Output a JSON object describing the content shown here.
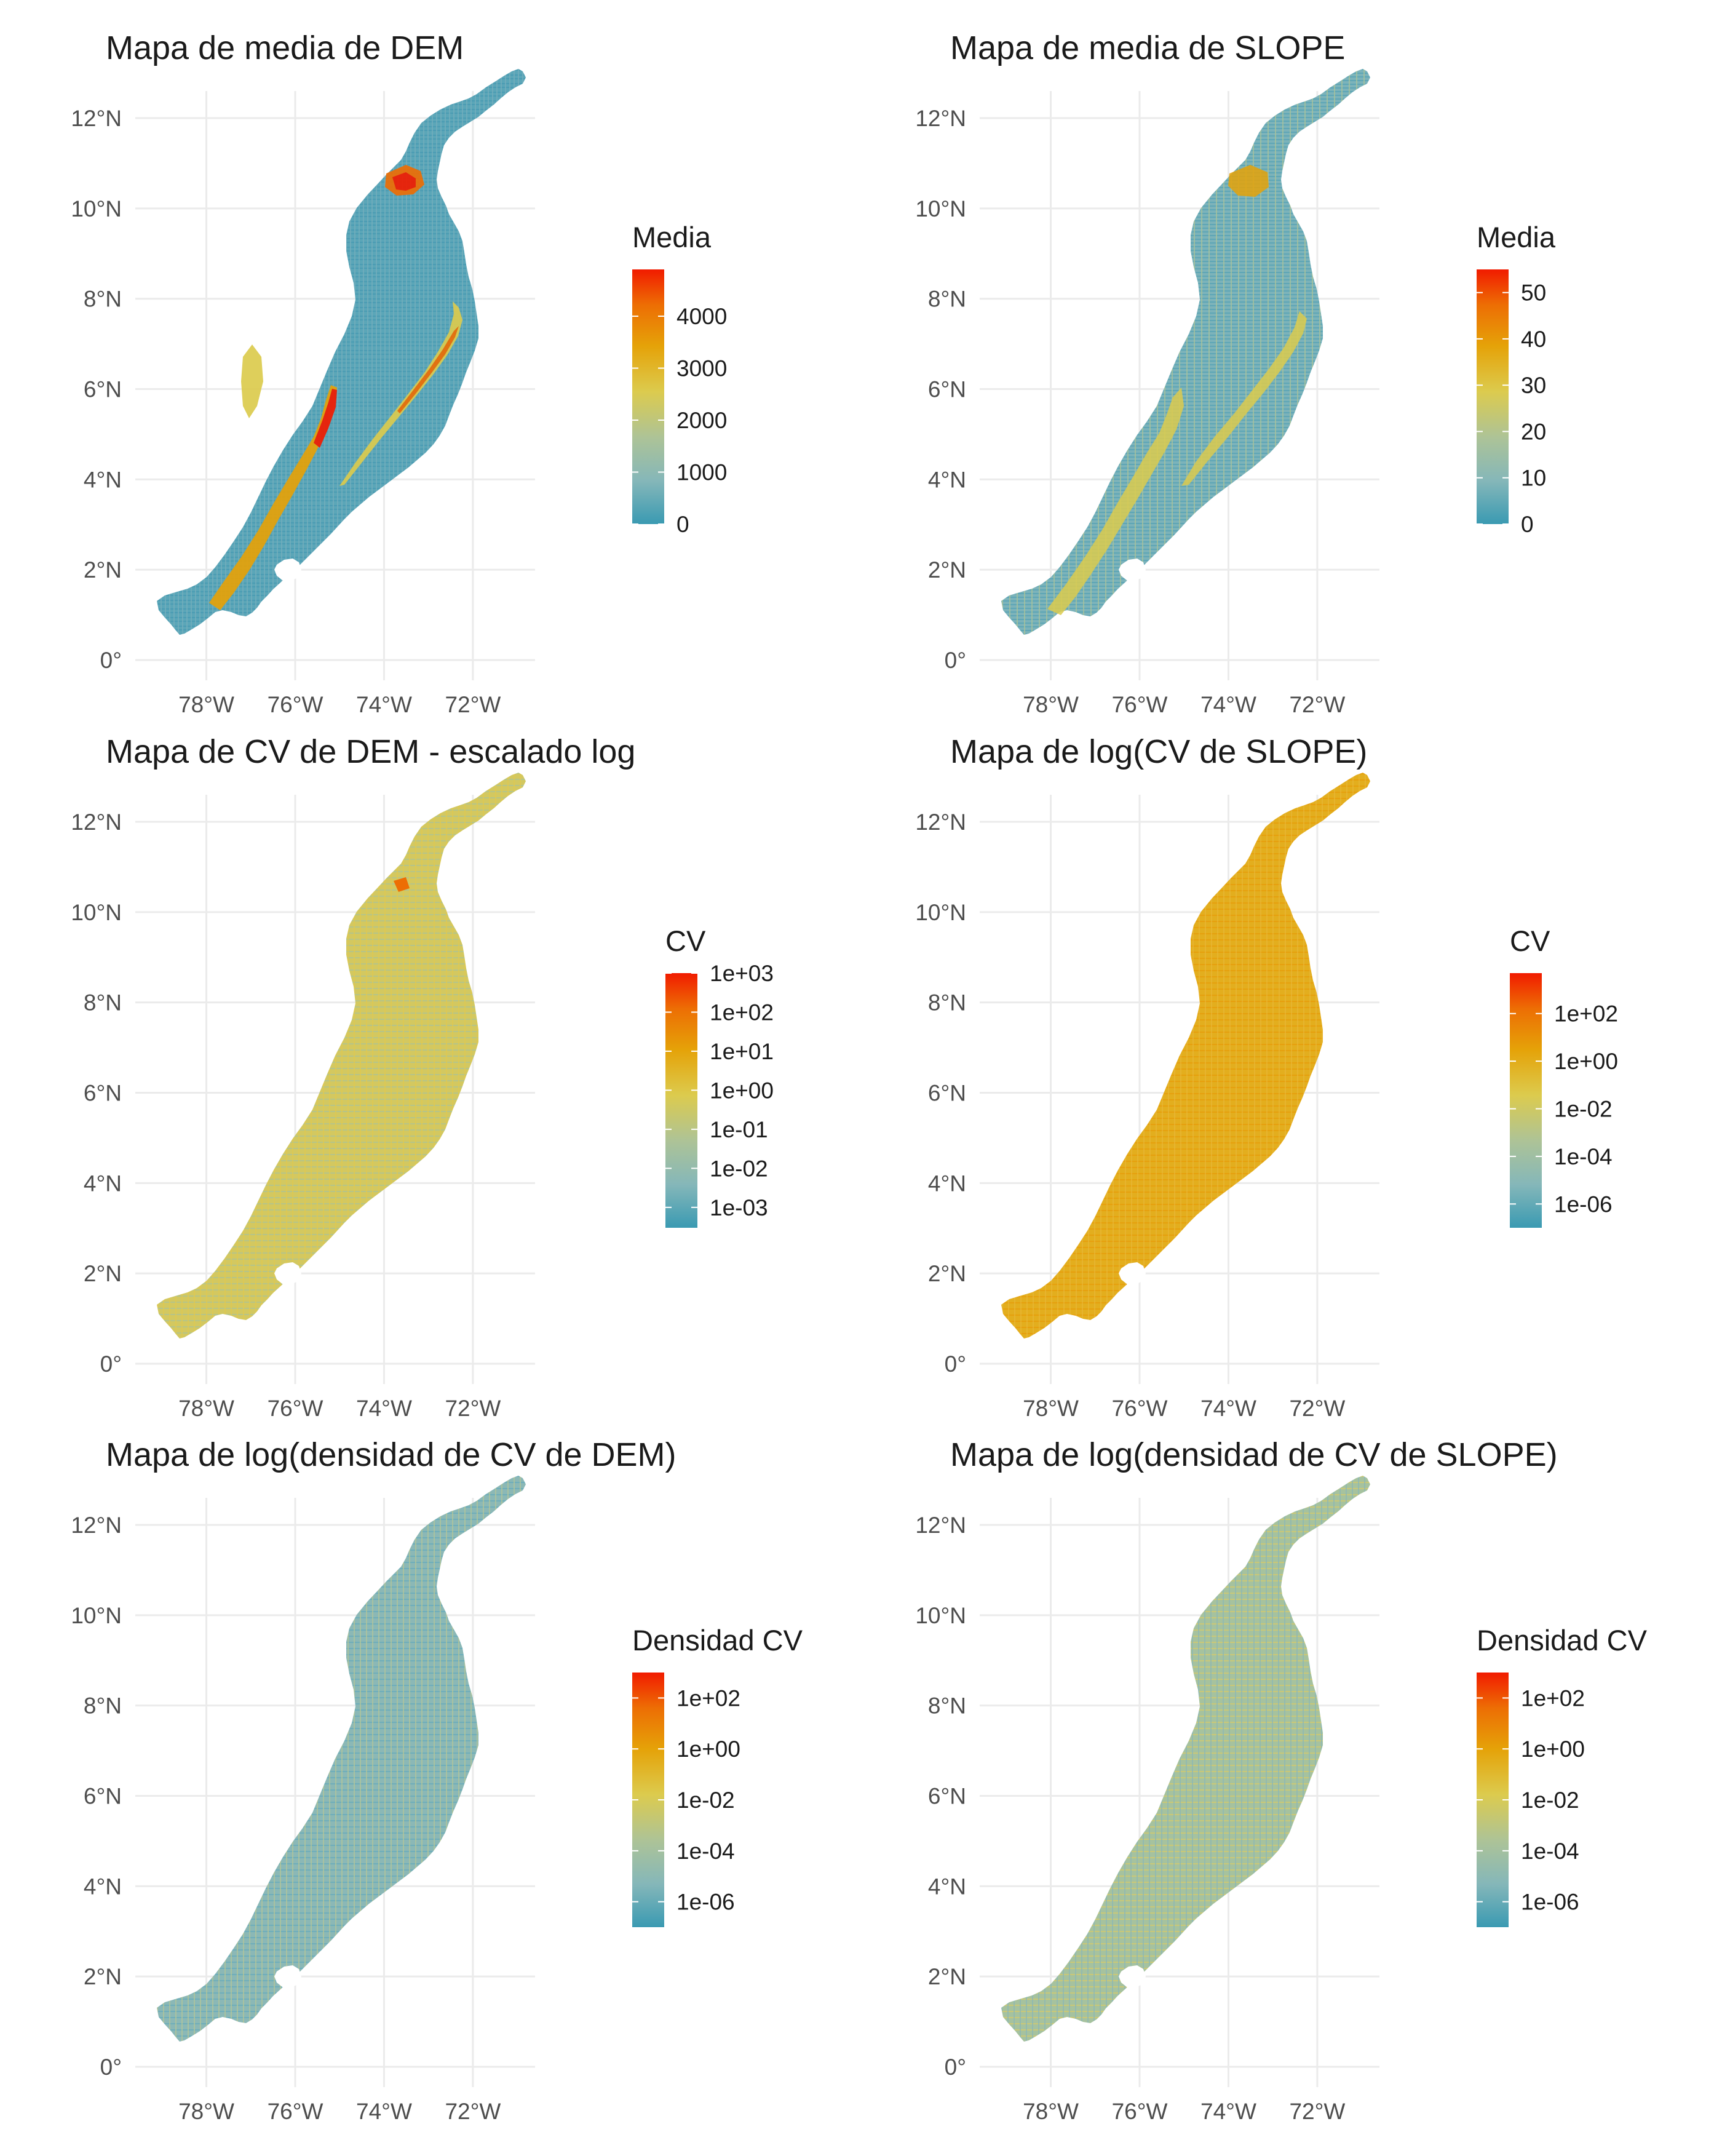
{
  "colors": {
    "grid": "#ebebeb",
    "axis_text": "#4d4d4d",
    "title_text": "#1a1a1a",
    "scale_low": "#3A9AB2",
    "scale_low_mid": "#85B7B9",
    "scale_mid": "#ADC397",
    "scale_mid_high": "#DCCB4E",
    "scale_high_mid": "#E5A208",
    "scale_high": "#ED6E04",
    "scale_top": "#F11B00"
  },
  "axes": {
    "x_ticks": [
      "78°W",
      "76°W",
      "74°W",
      "72°W"
    ],
    "y_ticks": [
      "12°N",
      "10°N",
      "8°N",
      "6°N",
      "4°N",
      "2°N",
      "0°"
    ]
  },
  "chart_data": [
    {
      "type": "raster-map",
      "title": "Mapa de media de DEM",
      "legend_title": "Media",
      "legend_labels": [
        "4000",
        "3000",
        "2000",
        "1000",
        "0"
      ],
      "legend_values": [
        4000,
        3000,
        2000,
        1000,
        0
      ],
      "value_range": [
        0,
        4900
      ],
      "scale": "linear",
      "fill_pattern": "dem"
    },
    {
      "type": "raster-map",
      "title": "Mapa de media de SLOPE",
      "legend_title": "Media",
      "legend_labels": [
        "50",
        "40",
        "30",
        "20",
        "10",
        "0"
      ],
      "legend_values": [
        50,
        40,
        30,
        20,
        10,
        0
      ],
      "value_range": [
        0,
        55
      ],
      "scale": "linear",
      "fill_pattern": "slope"
    },
    {
      "type": "raster-map",
      "title": "Mapa de CV de DEM - escalado log",
      "legend_title": "CV",
      "legend_labels": [
        "1e+03",
        "1e+02",
        "1e+01",
        "1e+00",
        "1e-01",
        "1e-02",
        "1e-03"
      ],
      "legend_values": [
        1000,
        100,
        10,
        1,
        0.1,
        0.01,
        0.001
      ],
      "value_range": [
        0.0003,
        1000
      ],
      "scale": "log",
      "fill_pattern": "cv_dem"
    },
    {
      "type": "raster-map",
      "title": "Mapa de log(CV de SLOPE)",
      "legend_title": "CV",
      "legend_labels": [
        "1e+02",
        "1e+00",
        "1e-02",
        "1e-04",
        "1e-06"
      ],
      "legend_values": [
        100,
        1,
        0.01,
        0.0001,
        1e-06
      ],
      "value_range": [
        1e-07,
        5000
      ],
      "scale": "log",
      "fill_pattern": "cv_slope"
    },
    {
      "type": "raster-map",
      "title": "Mapa de log(densidad de CV de DEM)",
      "legend_title": "Densidad CV",
      "legend_labels": [
        "1e+02",
        "1e+00",
        "1e-02",
        "1e-04",
        "1e-06"
      ],
      "legend_values": [
        100,
        1,
        0.01,
        0.0001,
        1e-06
      ],
      "value_range": [
        1e-07,
        1000
      ],
      "scale": "log",
      "fill_pattern": "dens_dem"
    },
    {
      "type": "raster-map",
      "title": "Mapa de log(densidad de CV de SLOPE)",
      "legend_title": "Densidad CV",
      "legend_labels": [
        "1e+02",
        "1e+00",
        "1e-02",
        "1e-04",
        "1e-06"
      ],
      "legend_values": [
        100,
        1,
        0.01,
        0.0001,
        1e-06
      ],
      "value_range": [
        1e-07,
        1000
      ],
      "scale": "log",
      "fill_pattern": "dens_slope"
    }
  ]
}
